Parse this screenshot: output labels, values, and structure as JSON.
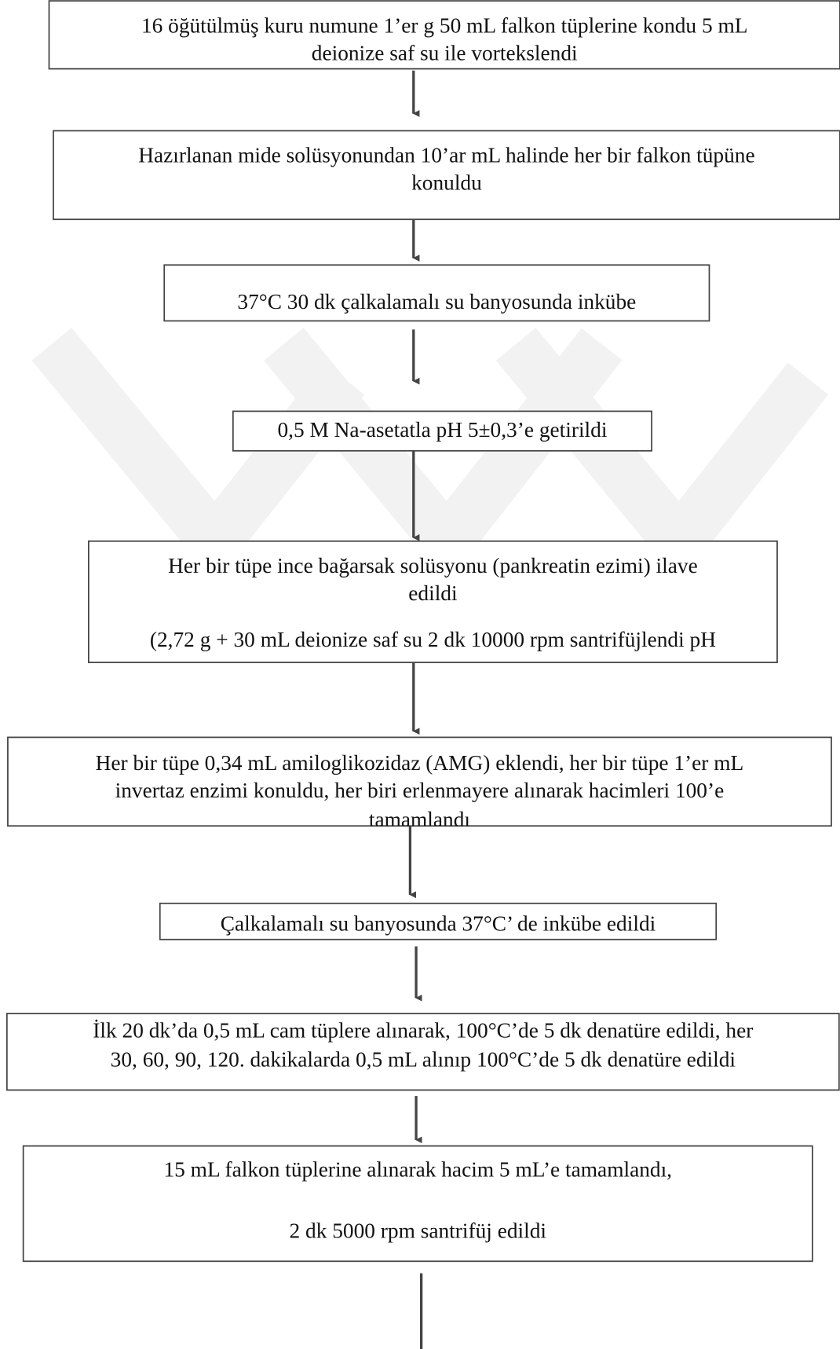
{
  "steps": [
    {
      "lines": [
        "16 öğütülmüş kuru numune 1’er g  50 mL falkon tüplerine kondu 5 mL",
        "deionize saf su ile vortekslendi"
      ]
    },
    {
      "lines": [
        "Hazırlanan mide solüsyonundan 10’ar mL halinde her bir falkon tüpüne",
        "konuldu"
      ]
    },
    {
      "lines": [
        "37°C 30 dk çalkalamalı su banyosunda inkübe"
      ]
    },
    {
      "lines": [
        "0,5 M Na-asetatla pH 5±0,3’e getirildi"
      ]
    },
    {
      "lines": [
        "Her bir tüpe ince bağarsak solüsyonu (pankreatin ezimi) ilave",
        "edildi",
        "(2,72 g + 30 mL deionize saf su 2 dk 10000 rpm santrifüjlendi pH"
      ]
    },
    {
      "lines": [
        "Her bir tüpe 0,34 mL amiloglikozidaz (AMG) eklendi, her bir tüpe 1’er mL",
        "invertaz enzimi konuldu, her biri erlenmayere alınarak hacimleri 100’e",
        "tamamlandı"
      ]
    },
    {
      "lines": [
        "Çalkalamalı su banyosunda 37°C’ de inkübe edildi"
      ]
    },
    {
      "lines": [
        "İlk 20 dk’da 0,5 mL cam tüplere alınarak, 100°C’de 5 dk denatüre edildi, her",
        "30, 60, 90, 120. dakikalarda 0,5 mL alınıp 100°C’de 5 dk denatüre edildi"
      ]
    },
    {
      "lines": [
        "15 mL falkon tüplerine alınarak hacim 5 mL’e tamamlandı,",
        "2 dk 5000 rpm santrifüj edildi"
      ]
    }
  ]
}
